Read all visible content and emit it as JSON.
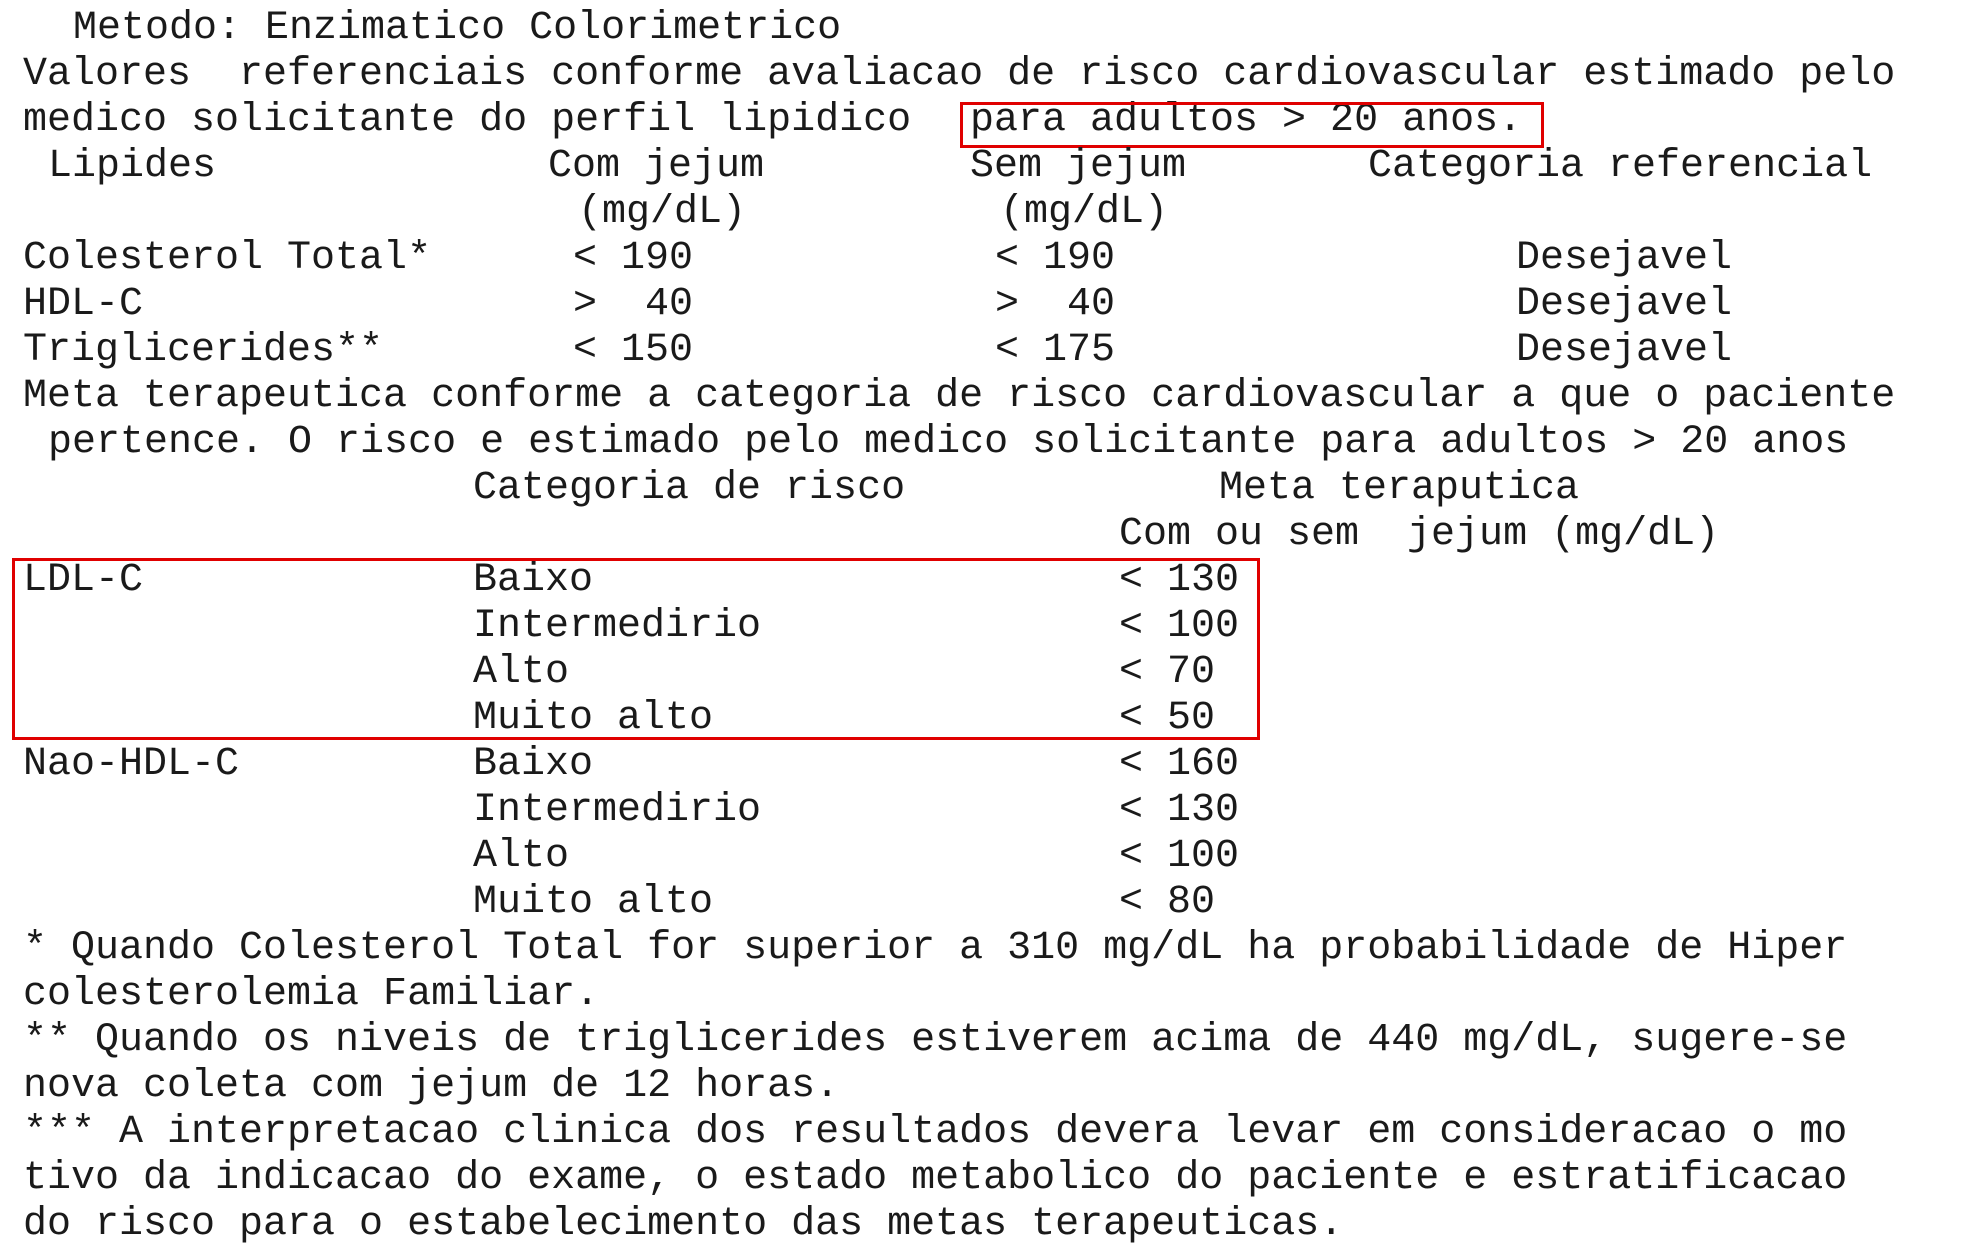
{
  "highlight_color": "#e00000",
  "method": "Metodo: Enzimatico Colorimetrico",
  "intro": {
    "line1": "Valores  referenciais conforme avaliacao de risco cardiovascular estimado pelo",
    "line2_prefix": "medico solicitante do perfil lipidico",
    "line2_highlight": "para adultos > 20 anos."
  },
  "table1": {
    "headers": {
      "lipides": "Lipides",
      "com_jejum": "Com jejum",
      "com_jejum_unit": "(mg/dL)",
      "sem_jejum": "Sem jejum",
      "sem_jejum_unit": "(mg/dL)",
      "categoria": "Categoria referencial"
    },
    "rows": [
      {
        "name": "Colesterol Total*",
        "com": "< 190",
        "sem": "< 190",
        "cat": "Desejavel"
      },
      {
        "name": "HDL-C",
        "com": ">  40",
        "sem": ">  40",
        "cat": "Desejavel"
      },
      {
        "name": "Triglicerides**",
        "com": "< 150",
        "sem": "< 175",
        "cat": "Desejavel"
      }
    ]
  },
  "meta": {
    "line1": "Meta terapeutica conforme a categoria de risco cardiovascular a que o paciente",
    "line2": "pertence. O risco e estimado pelo medico solicitante para adultos > 20 anos"
  },
  "table2": {
    "headers": {
      "categoria": "Categoria de risco",
      "meta": "Meta teraputica",
      "meta_sub": "Com ou sem  jejum (mg/dL)"
    },
    "groups": [
      {
        "name": "LDL-C",
        "rows": [
          {
            "cat": "Baixo",
            "val": "< 130"
          },
          {
            "cat": "Intermedirio",
            "val": "< 100"
          },
          {
            "cat": "Alto",
            "val": "< 70"
          },
          {
            "cat": "Muito alto",
            "val": "< 50"
          }
        ]
      },
      {
        "name": "Nao-HDL-C",
        "rows": [
          {
            "cat": "Baixo",
            "val": "< 160"
          },
          {
            "cat": "Intermedirio",
            "val": "< 130"
          },
          {
            "cat": "Alto",
            "val": "< 100"
          },
          {
            "cat": "Muito alto",
            "val": "< 80"
          }
        ]
      }
    ]
  },
  "notes": [
    "* Quando Colesterol Total for superior a 310 mg/dL ha probabilidade de Hiper",
    "colesterolemia Familiar.",
    "** Quando os niveis de triglicerides estiverem acima de 440 mg/dL, sugere-se",
    "nova coleta com jejum de 12 horas.",
    "*** A interpretacao clinica dos resultados devera levar em consideracao o mo",
    "tivo da indicacao do exame, o estado metabolico do paciente e estratificacao",
    "do risco para o estabelecimento das metas terapeuticas."
  ]
}
